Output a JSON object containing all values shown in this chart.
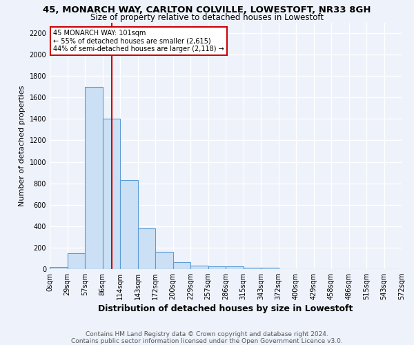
{
  "title1": "45, MONARCH WAY, CARLTON COLVILLE, LOWESTOFT, NR33 8GH",
  "title2": "Size of property relative to detached houses in Lowestoft",
  "xlabel": "Distribution of detached houses by size in Lowestoft",
  "ylabel": "Number of detached properties",
  "bar_values": [
    20,
    150,
    1700,
    1400,
    830,
    380,
    160,
    65,
    35,
    25,
    25,
    15,
    10,
    0,
    0,
    0,
    0,
    0,
    0,
    0
  ],
  "bar_labels": [
    "0sqm",
    "29sqm",
    "57sqm",
    "86sqm",
    "114sqm",
    "143sqm",
    "172sqm",
    "200sqm",
    "229sqm",
    "257sqm",
    "286sqm",
    "315sqm",
    "343sqm",
    "372sqm",
    "400sqm",
    "429sqm",
    "458sqm",
    "486sqm",
    "515sqm",
    "543sqm",
    "572sqm"
  ],
  "bar_color": "#cce0f5",
  "bar_edge_color": "#5b9bd5",
  "vline_x": 3.54,
  "vline_color": "#cc0000",
  "annotation_text": "45 MONARCH WAY: 101sqm\n← 55% of detached houses are smaller (2,615)\n44% of semi-detached houses are larger (2,118) →",
  "annotation_box_color": "white",
  "annotation_box_edge": "#cc0000",
  "ylim": [
    0,
    2300
  ],
  "yticks": [
    0,
    200,
    400,
    600,
    800,
    1000,
    1200,
    1400,
    1600,
    1800,
    2000,
    2200
  ],
  "background_color": "#eef2fb",
  "grid_color": "#ffffff",
  "footer1": "Contains HM Land Registry data © Crown copyright and database right 2024.",
  "footer2": "Contains public sector information licensed under the Open Government Licence v3.0.",
  "title1_fontsize": 9.5,
  "title2_fontsize": 8.5,
  "xlabel_fontsize": 9,
  "ylabel_fontsize": 8,
  "tick_fontsize": 7,
  "footer_fontsize": 6.5
}
